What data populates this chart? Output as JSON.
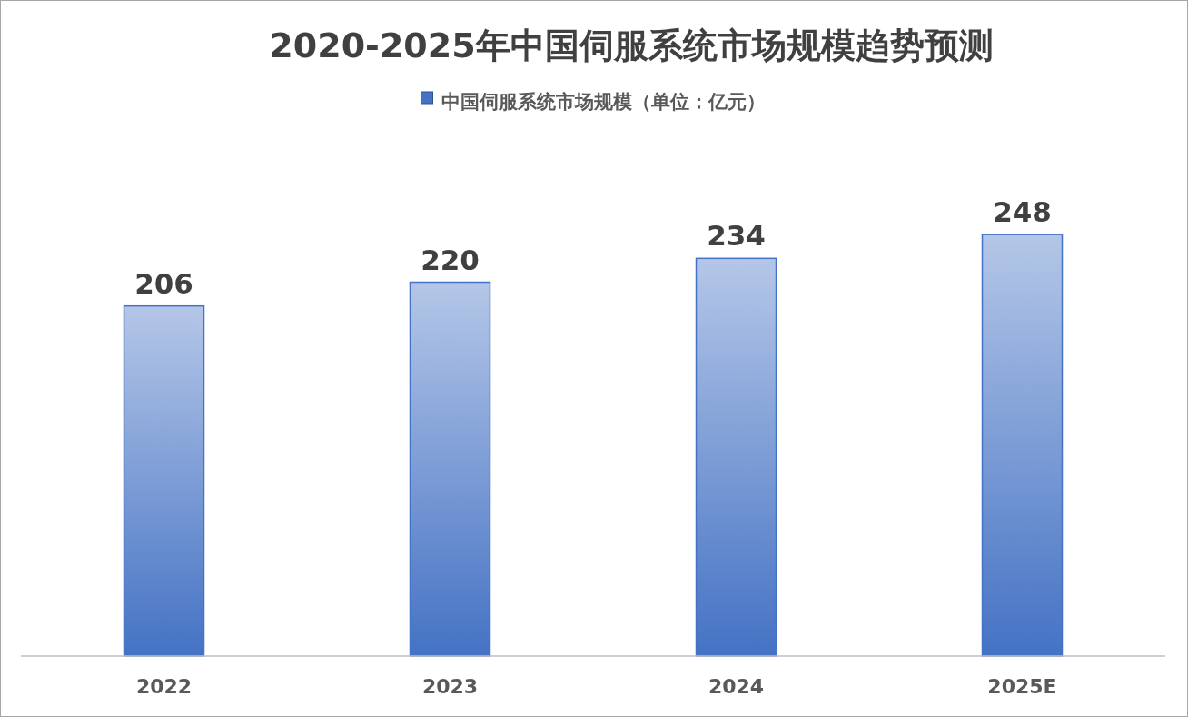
{
  "chart_data": {
    "type": "bar",
    "title": "2020-2025年中国伺服系统市场规模趋势预测",
    "categories": [
      "2022",
      "2023",
      "2024",
      "2025E"
    ],
    "series": [
      {
        "name": "中国伺服系统市场规模（单位：亿元）",
        "color": "#4472c4",
        "values": [
          206,
          220,
          234,
          248
        ]
      }
    ],
    "data_labels": true,
    "legend": "top"
  }
}
